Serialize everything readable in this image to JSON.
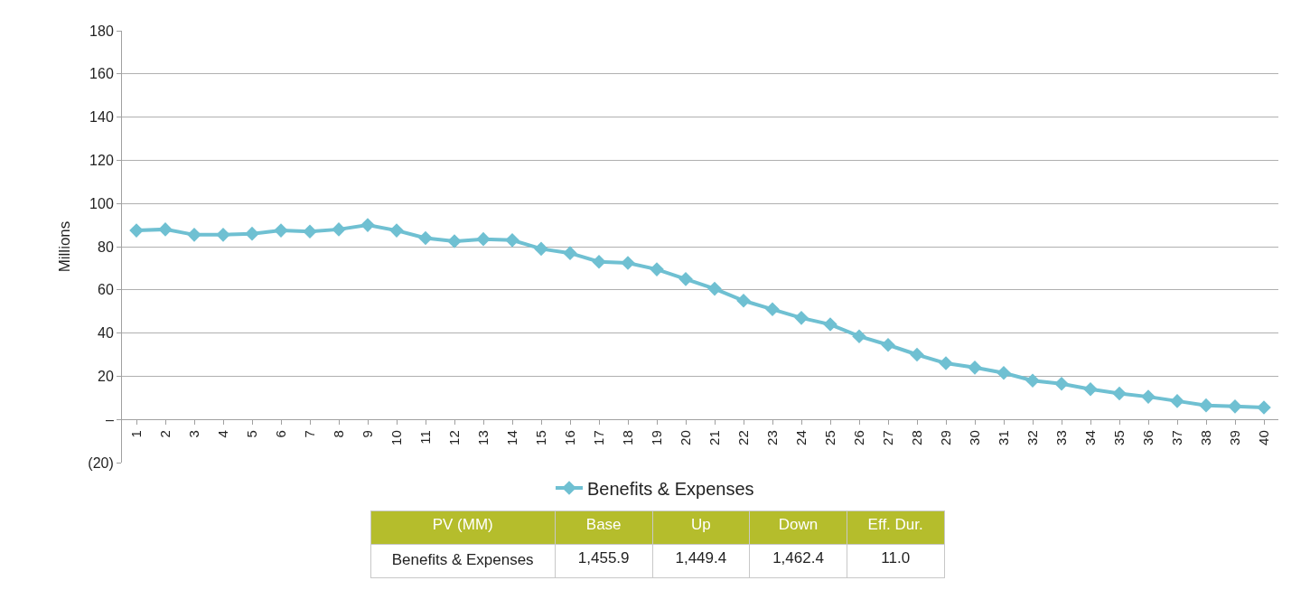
{
  "chart_data": {
    "type": "line",
    "ylabel": "Millions",
    "categories": [
      "1",
      "2",
      "3",
      "4",
      "5",
      "6",
      "7",
      "8",
      "9",
      "10",
      "11",
      "12",
      "13",
      "14",
      "15",
      "16",
      "17",
      "18",
      "19",
      "20",
      "21",
      "22",
      "23",
      "24",
      "25",
      "26",
      "27",
      "28",
      "29",
      "30",
      "31",
      "32",
      "33",
      "34",
      "35",
      "36",
      "37",
      "38",
      "39",
      "40"
    ],
    "series": [
      {
        "name": "Benefits & Expenses",
        "color": "#6fc0d2",
        "values": [
          87.5,
          88,
          85.5,
          85.5,
          86,
          87.5,
          87,
          88,
          90,
          87.5,
          84,
          82.5,
          83.5,
          83,
          79,
          77,
          73,
          72.5,
          69.5,
          65,
          60.5,
          55,
          51,
          47,
          44,
          38.5,
          34.5,
          30,
          26,
          24,
          21.5,
          18,
          16.5,
          14,
          12,
          10.5,
          8.5,
          6.5,
          6,
          5.5
        ]
      }
    ],
    "ylim": [
      -20,
      180
    ],
    "yticks": [
      {
        "value": -20,
        "label": "(20)"
      },
      {
        "value": 0,
        "label": "–"
      },
      20,
      40,
      60,
      80,
      100,
      120,
      140,
      160,
      180
    ],
    "grid": "y",
    "legend": "bottom",
    "marker": "diamond",
    "line_style": "solid",
    "annotations": [
      "PV (MM)",
      "Base",
      "Up",
      "Down",
      "Eff. Dur.",
      "Benefits & Expenses",
      "1,455.9",
      "1,449.4",
      "1,462.4",
      "11.0"
    ]
  }
}
